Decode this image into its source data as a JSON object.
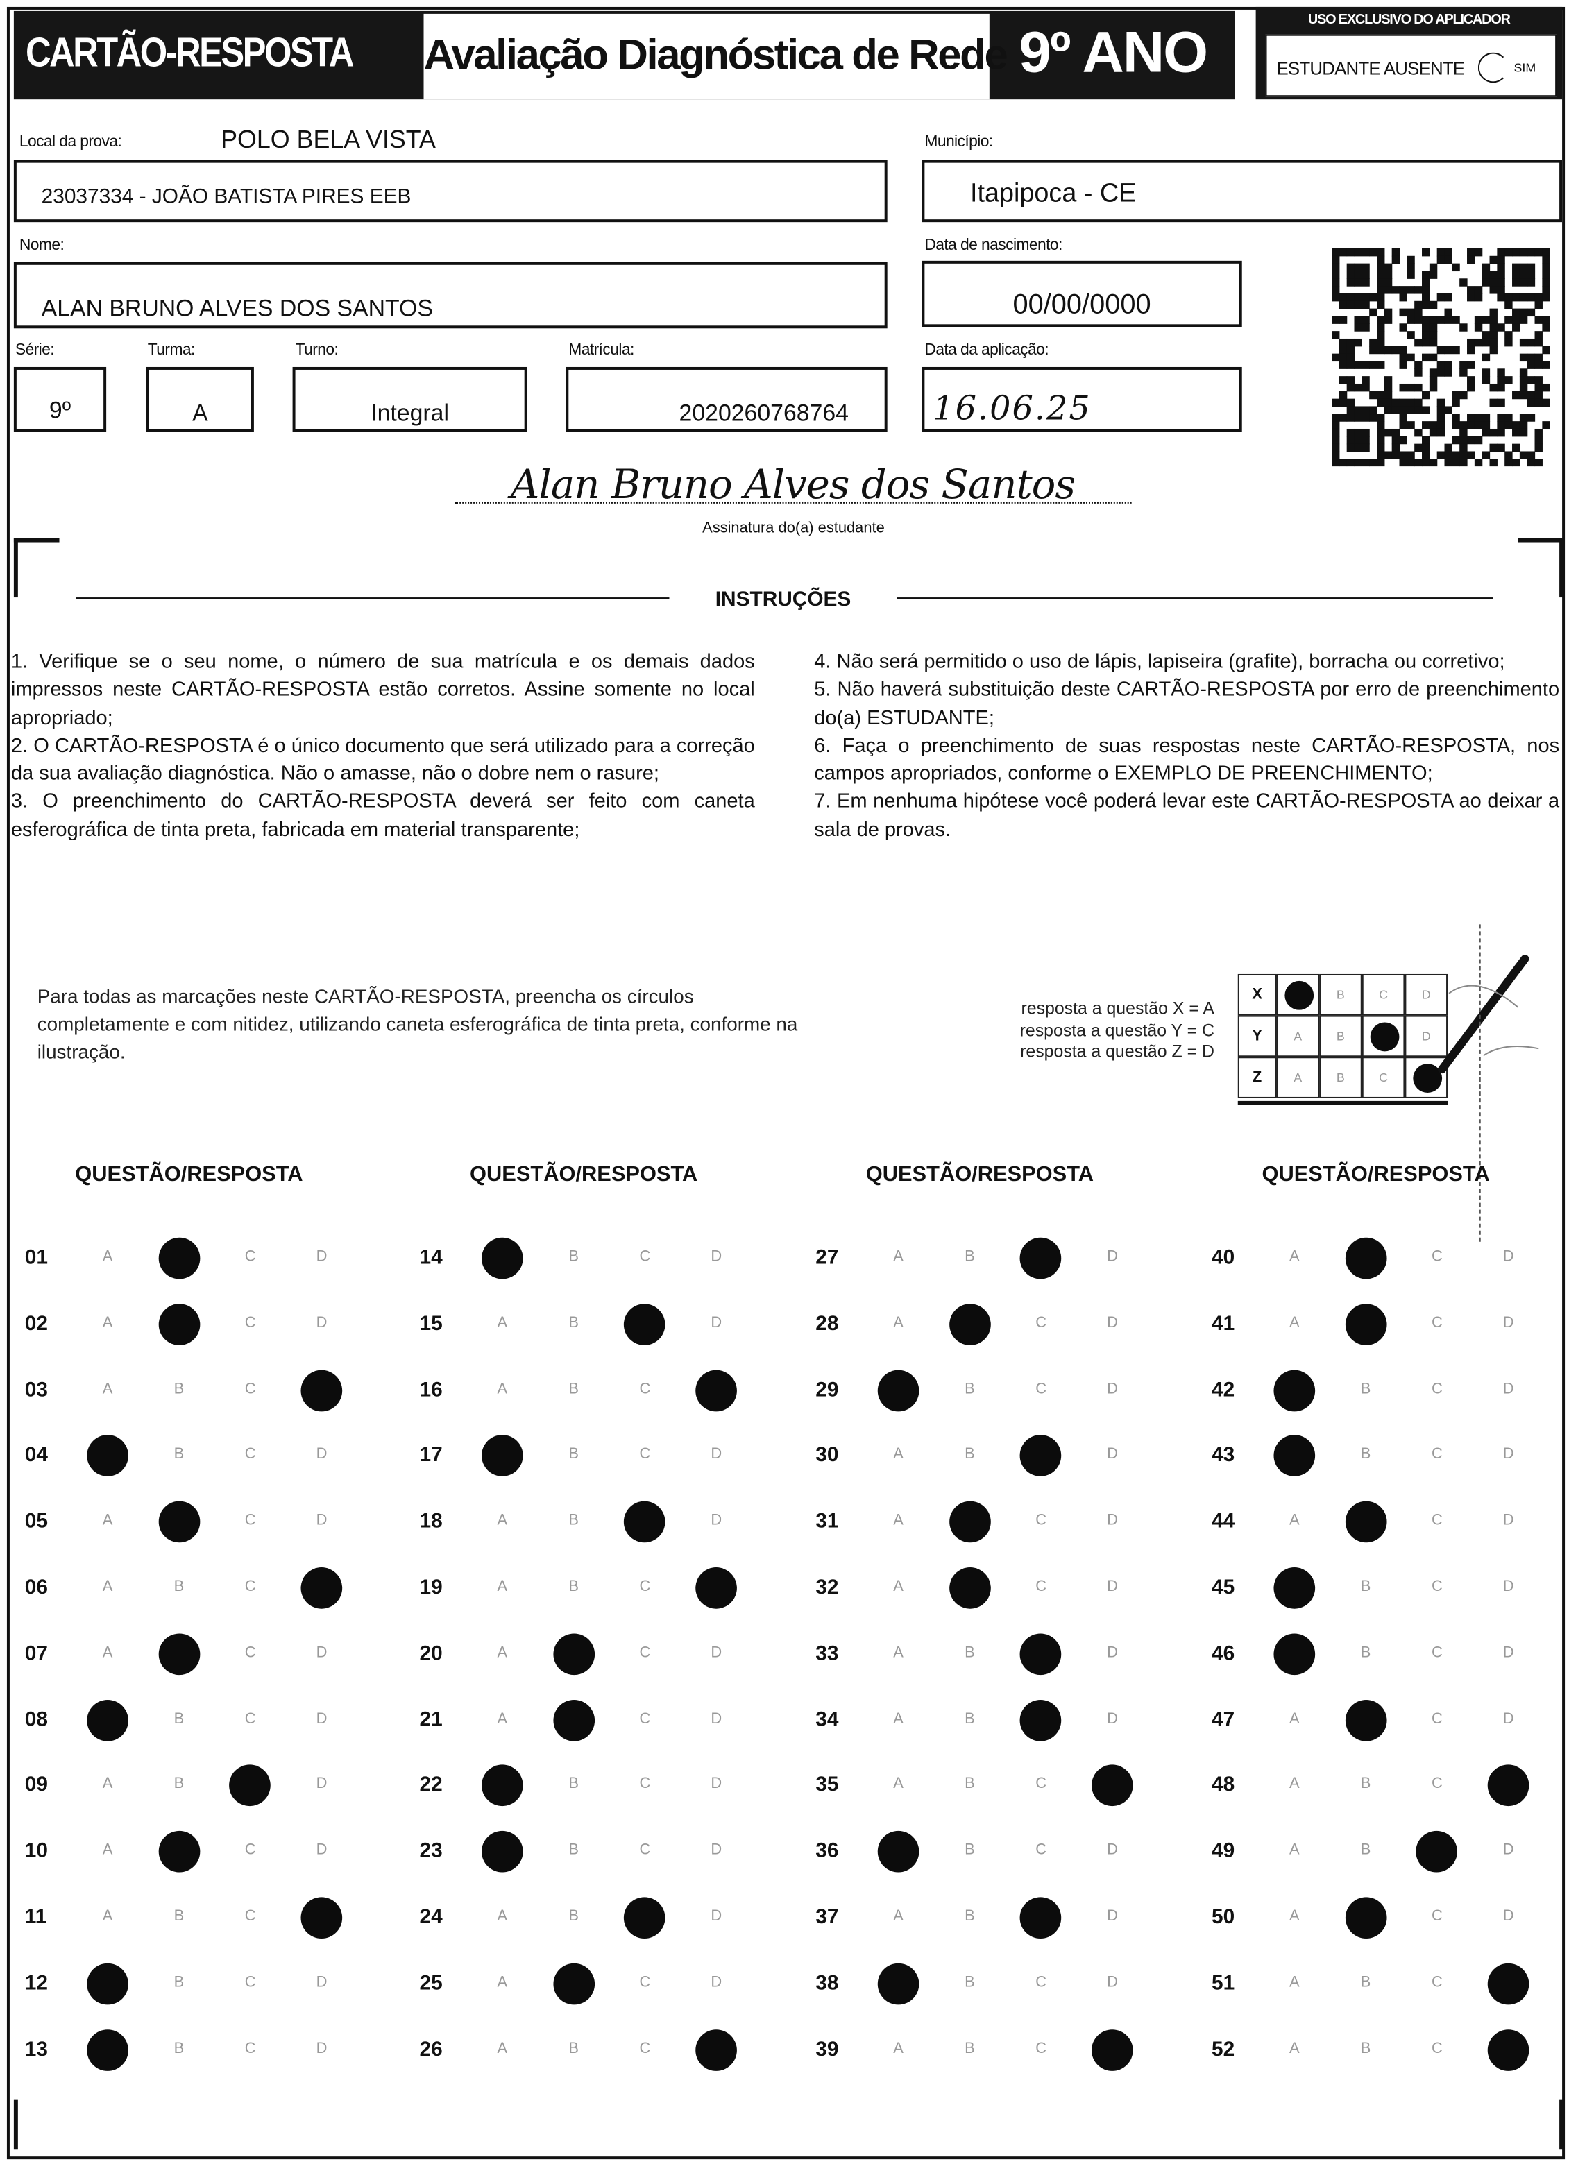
{
  "header": {
    "title": "CARTÃO-RESPOSTA",
    "subtitle": "Avaliação Diagnóstica de Rede",
    "year": "9º ANO",
    "applicator_title": "USO EXCLUSIVO DO APLICADOR",
    "absent_label": "ESTUDANTE AUSENTE",
    "absent_option": "SIM"
  },
  "fields": {
    "local_label": "Local da prova:",
    "local_value": "POLO BELA VISTA",
    "school": "23037334 - JOÃO BATISTA PIRES EEB",
    "municipio_label": "Município:",
    "municipio": "Itapipoca - CE",
    "nome_label": "Nome:",
    "nome": "ALAN BRUNO ALVES DOS SANTOS",
    "nascimento_label": "Data de nascimento:",
    "nascimento": "00/00/0000",
    "serie_label": "Série:",
    "serie": "9º",
    "turma_label": "Turma:",
    "turma": "A",
    "turno_label": "Turno:",
    "turno": "Integral",
    "matricula_label": "Matrícula:",
    "matricula": "2020260768764",
    "aplicacao_label": "Data da aplicação:",
    "aplicacao": "16.06.25",
    "signature": "Alan Bruno Alves dos Santos",
    "signature_label": "Assinatura do(a) estudante"
  },
  "instructions": {
    "title": "INSTRUÇÕES",
    "left": [
      "1. Verifique se o seu nome, o número de sua matrícula e os demais dados impressos neste CARTÃO-RESPOSTA estão corretos. Assine somente no local apropriado;",
      "2. O CARTÃO-RESPOSTA é o único documento que será utilizado para a correção da sua avaliação diagnóstica. Não o amasse, não o dobre nem o rasure;",
      "3. O preenchimento do CARTÃO-RESPOSTA deverá ser feito com caneta esferográfica de tinta preta, fabricada em material transparente;"
    ],
    "right": [
      "4. Não será permitido o uso de lápis, lapiseira (grafite), borracha ou corretivo;",
      "5. Não haverá substituição deste CARTÃO-RESPOSTA por erro de preenchimento do(a) ESTUDANTE;",
      "6. Faça o preenchimento de suas respostas neste CARTÃO-RESPOSTA, nos campos apropriados, conforme o EXEMPLO DE PREENCHIMENTO;",
      "7. Em nenhuma hipótese você poderá levar este CARTÃO-RESPOSTA ao deixar a sala de provas."
    ]
  },
  "example": {
    "text": "Para todas as marcações neste CARTÃO-RESPOSTA, preencha os círculos completamente e com nitidez, utilizando caneta esferográfica de tinta preta, conforme na ilustração.",
    "legend": [
      "resposta a questão X = A",
      "resposta a questão Y = C",
      "resposta a questão Z = D"
    ],
    "rows": [
      {
        "q": "X",
        "answer": "A"
      },
      {
        "q": "Y",
        "answer": "C"
      },
      {
        "q": "Z",
        "answer": "D"
      }
    ]
  },
  "options": [
    "A",
    "B",
    "C",
    "D"
  ],
  "answer_sheet": {
    "column_header": "QUESTÃO/RESPOSTA",
    "columns": [
      [
        {
          "q": "01",
          "a": "B"
        },
        {
          "q": "02",
          "a": "B"
        },
        {
          "q": "03",
          "a": "D"
        },
        {
          "q": "04",
          "a": "A"
        },
        {
          "q": "05",
          "a": "B"
        },
        {
          "q": "06",
          "a": "D"
        },
        {
          "q": "07",
          "a": "B"
        },
        {
          "q": "08",
          "a": "A"
        },
        {
          "q": "09",
          "a": "C"
        },
        {
          "q": "10",
          "a": "B"
        },
        {
          "q": "11",
          "a": "D"
        },
        {
          "q": "12",
          "a": "A"
        },
        {
          "q": "13",
          "a": "A"
        }
      ],
      [
        {
          "q": "14",
          "a": "A"
        },
        {
          "q": "15",
          "a": "C"
        },
        {
          "q": "16",
          "a": "D"
        },
        {
          "q": "17",
          "a": "A"
        },
        {
          "q": "18",
          "a": "C"
        },
        {
          "q": "19",
          "a": "D"
        },
        {
          "q": "20",
          "a": "B"
        },
        {
          "q": "21",
          "a": "B"
        },
        {
          "q": "22",
          "a": "A"
        },
        {
          "q": "23",
          "a": "A"
        },
        {
          "q": "24",
          "a": "C"
        },
        {
          "q": "25",
          "a": "B"
        },
        {
          "q": "26",
          "a": "D"
        }
      ],
      [
        {
          "q": "27",
          "a": "C"
        },
        {
          "q": "28",
          "a": "B"
        },
        {
          "q": "29",
          "a": "A"
        },
        {
          "q": "30",
          "a": "C"
        },
        {
          "q": "31",
          "a": "B"
        },
        {
          "q": "32",
          "a": "B"
        },
        {
          "q": "33",
          "a": "C"
        },
        {
          "q": "34",
          "a": "C"
        },
        {
          "q": "35",
          "a": "D"
        },
        {
          "q": "36",
          "a": "A"
        },
        {
          "q": "37",
          "a": "C"
        },
        {
          "q": "38",
          "a": "A"
        },
        {
          "q": "39",
          "a": "D"
        }
      ],
      [
        {
          "q": "40",
          "a": "B"
        },
        {
          "q": "41",
          "a": "B"
        },
        {
          "q": "42",
          "a": "A"
        },
        {
          "q": "43",
          "a": "A"
        },
        {
          "q": "44",
          "a": "B"
        },
        {
          "q": "45",
          "a": "A"
        },
        {
          "q": "46",
          "a": "A"
        },
        {
          "q": "47",
          "a": "B"
        },
        {
          "q": "48",
          "a": "D"
        },
        {
          "q": "49",
          "a": "C"
        },
        {
          "q": "50",
          "a": "B"
        },
        {
          "q": "51",
          "a": "D"
        },
        {
          "q": "52",
          "a": "D"
        }
      ]
    ]
  }
}
